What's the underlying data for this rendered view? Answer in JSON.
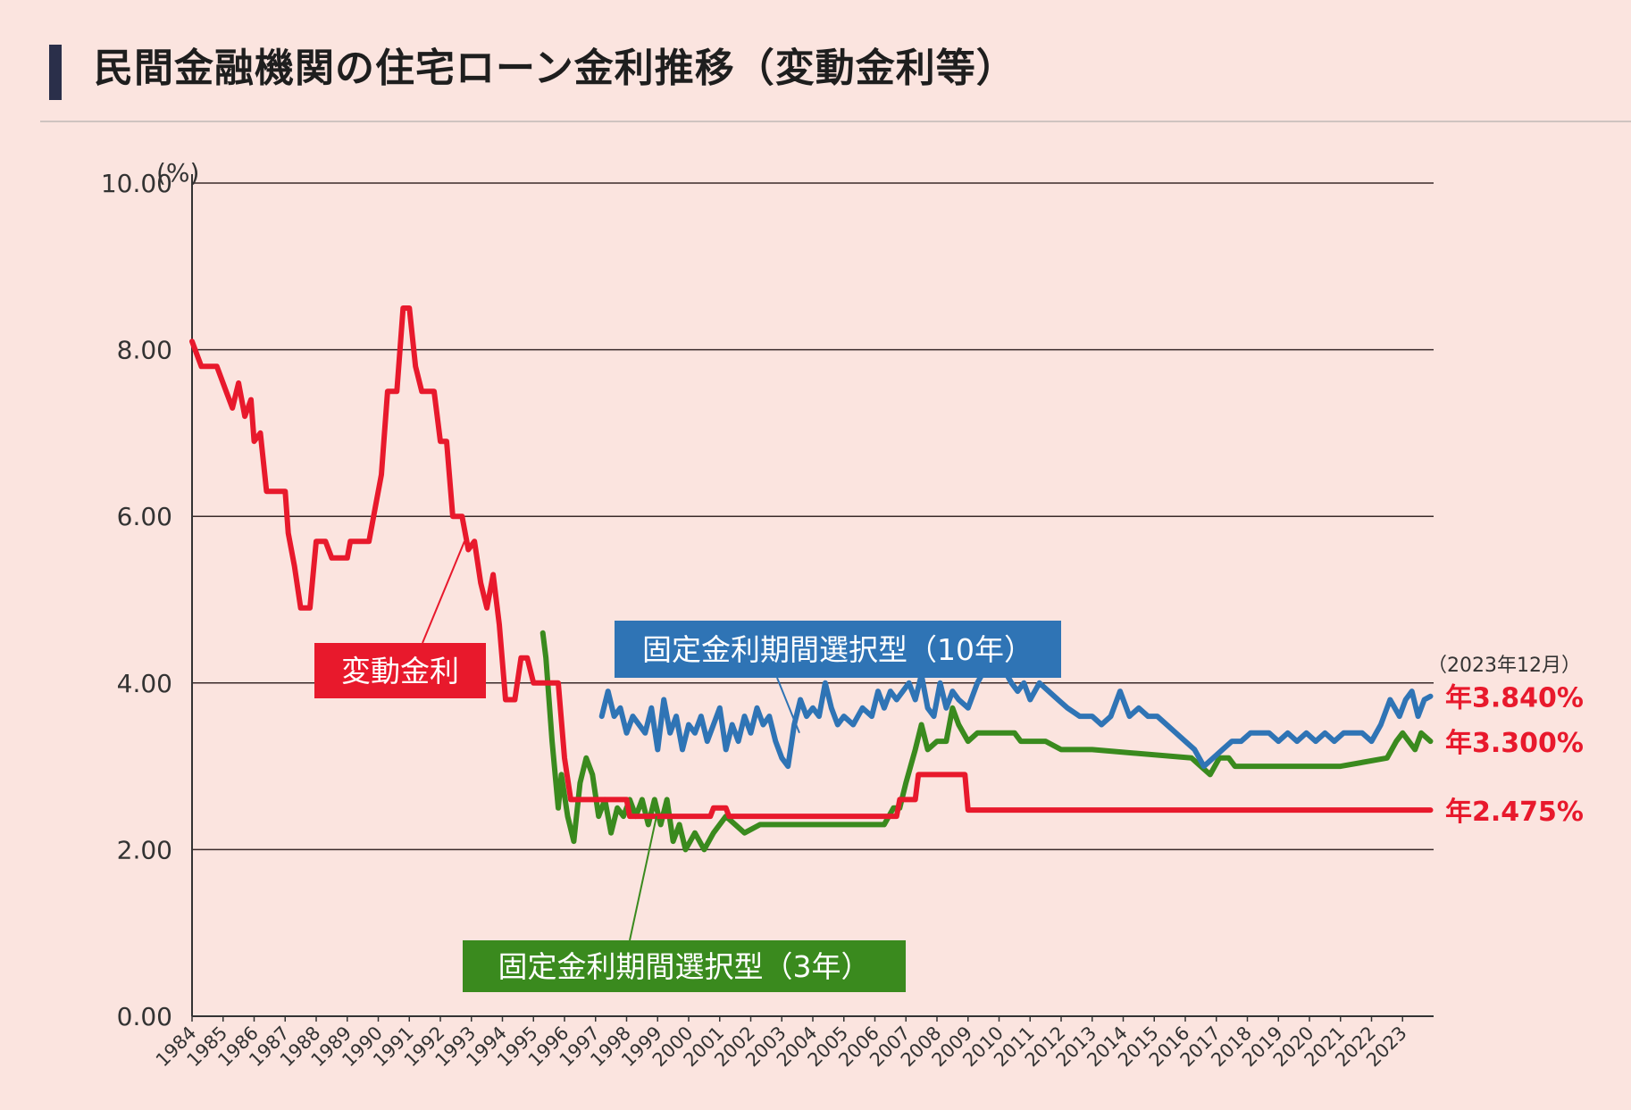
{
  "title": "民間金融機関の住宅ローン金利推移（変動金利等）",
  "chart_data": {
    "type": "line",
    "ylabel": "(%)",
    "ylim": [
      0,
      10
    ],
    "yticks": [
      "0.00",
      "2.00",
      "4.00",
      "6.00",
      "8.00",
      "10.00"
    ],
    "xlim": [
      1984,
      2024
    ],
    "xticks": [
      "1984",
      "1985",
      "1986",
      "1987",
      "1988",
      "1989",
      "1990",
      "1991",
      "1992",
      "1993",
      "1994",
      "1995",
      "1996",
      "1997",
      "1998",
      "1999",
      "2000",
      "2001",
      "2002",
      "2003",
      "2004",
      "2005",
      "2006",
      "2007",
      "2008",
      "2009",
      "2010",
      "2011",
      "2012",
      "2013",
      "2014",
      "2015",
      "2016",
      "2017",
      "2018",
      "2019",
      "2020",
      "2021",
      "2022",
      "2023"
    ],
    "date_note": "（2023年12月）",
    "series": [
      {
        "name": "変動金利",
        "color": "#e8192c",
        "end_label": "年2.475%",
        "points": [
          [
            1984.0,
            8.1
          ],
          [
            1984.3,
            7.8
          ],
          [
            1984.8,
            7.8
          ],
          [
            1985.1,
            7.5
          ],
          [
            1985.3,
            7.3
          ],
          [
            1985.5,
            7.6
          ],
          [
            1985.7,
            7.2
          ],
          [
            1985.9,
            7.4
          ],
          [
            1986.0,
            6.9
          ],
          [
            1986.2,
            7.0
          ],
          [
            1986.4,
            6.3
          ],
          [
            1987.0,
            6.3
          ],
          [
            1987.1,
            5.8
          ],
          [
            1987.3,
            5.4
          ],
          [
            1987.5,
            4.9
          ],
          [
            1987.8,
            4.9
          ],
          [
            1988.0,
            5.7
          ],
          [
            1988.3,
            5.7
          ],
          [
            1988.5,
            5.5
          ],
          [
            1989.0,
            5.5
          ],
          [
            1989.1,
            5.7
          ],
          [
            1989.7,
            5.7
          ],
          [
            1989.9,
            6.1
          ],
          [
            1990.1,
            6.5
          ],
          [
            1990.3,
            7.5
          ],
          [
            1990.6,
            7.5
          ],
          [
            1990.8,
            8.5
          ],
          [
            1991.0,
            8.5
          ],
          [
            1991.2,
            7.8
          ],
          [
            1991.4,
            7.5
          ],
          [
            1991.8,
            7.5
          ],
          [
            1992.0,
            6.9
          ],
          [
            1992.2,
            6.9
          ],
          [
            1992.4,
            6.0
          ],
          [
            1992.7,
            6.0
          ],
          [
            1992.9,
            5.6
          ],
          [
            1993.1,
            5.7
          ],
          [
            1993.3,
            5.2
          ],
          [
            1993.5,
            4.9
          ],
          [
            1993.7,
            5.3
          ],
          [
            1993.9,
            4.7
          ],
          [
            1994.1,
            3.8
          ],
          [
            1994.4,
            3.8
          ],
          [
            1994.6,
            4.3
          ],
          [
            1994.8,
            4.3
          ],
          [
            1995.0,
            4.0
          ],
          [
            1995.8,
            4.0
          ],
          [
            1996.0,
            3.1
          ],
          [
            1996.2,
            2.6
          ],
          [
            1998.0,
            2.6
          ],
          [
            1998.1,
            2.4
          ],
          [
            2000.7,
            2.4
          ],
          [
            2000.8,
            2.5
          ],
          [
            2001.2,
            2.5
          ],
          [
            2001.3,
            2.4
          ],
          [
            2006.7,
            2.4
          ],
          [
            2006.8,
            2.6
          ],
          [
            2007.3,
            2.6
          ],
          [
            2007.4,
            2.9
          ],
          [
            2008.9,
            2.9
          ],
          [
            2009.0,
            2.475
          ],
          [
            2023.9,
            2.475
          ]
        ]
      },
      {
        "name": "固定金利期間選択型（3年）",
        "color": "#3a8a1e",
        "end_label": "年3.300%",
        "points": [
          [
            1995.3,
            4.6
          ],
          [
            1995.4,
            4.3
          ],
          [
            1995.6,
            3.3
          ],
          [
            1995.8,
            2.5
          ],
          [
            1995.9,
            2.9
          ],
          [
            1996.1,
            2.4
          ],
          [
            1996.3,
            2.1
          ],
          [
            1996.5,
            2.8
          ],
          [
            1996.7,
            3.1
          ],
          [
            1996.9,
            2.9
          ],
          [
            1997.1,
            2.4
          ],
          [
            1997.3,
            2.6
          ],
          [
            1997.5,
            2.2
          ],
          [
            1997.7,
            2.5
          ],
          [
            1997.9,
            2.4
          ],
          [
            1998.1,
            2.6
          ],
          [
            1998.3,
            2.4
          ],
          [
            1998.5,
            2.6
          ],
          [
            1998.7,
            2.3
          ],
          [
            1998.9,
            2.6
          ],
          [
            1999.1,
            2.3
          ],
          [
            1999.3,
            2.6
          ],
          [
            1999.5,
            2.1
          ],
          [
            1999.7,
            2.3
          ],
          [
            1999.9,
            2.0
          ],
          [
            2000.2,
            2.2
          ],
          [
            2000.5,
            2.0
          ],
          [
            2000.8,
            2.2
          ],
          [
            2001.2,
            2.4
          ],
          [
            2001.5,
            2.3
          ],
          [
            2001.8,
            2.2
          ],
          [
            2002.3,
            2.3
          ],
          [
            2006.3,
            2.3
          ],
          [
            2006.6,
            2.5
          ],
          [
            2006.8,
            2.5
          ],
          [
            2007.0,
            2.8
          ],
          [
            2007.3,
            3.2
          ],
          [
            2007.5,
            3.5
          ],
          [
            2007.7,
            3.2
          ],
          [
            2008.0,
            3.3
          ],
          [
            2008.3,
            3.3
          ],
          [
            2008.5,
            3.7
          ],
          [
            2008.7,
            3.5
          ],
          [
            2009.0,
            3.3
          ],
          [
            2009.3,
            3.4
          ],
          [
            2010.5,
            3.4
          ],
          [
            2010.7,
            3.3
          ],
          [
            2011.5,
            3.3
          ],
          [
            2012.0,
            3.2
          ],
          [
            2012.5,
            3.2
          ],
          [
            2013.0,
            3.2
          ],
          [
            2016.2,
            3.1
          ],
          [
            2016.5,
            3.0
          ],
          [
            2016.8,
            2.9
          ],
          [
            2017.1,
            3.1
          ],
          [
            2017.4,
            3.1
          ],
          [
            2017.6,
            3.0
          ],
          [
            2018.0,
            3.0
          ],
          [
            2019.0,
            3.0
          ],
          [
            2021.0,
            3.0
          ],
          [
            2022.5,
            3.1
          ],
          [
            2022.8,
            3.3
          ],
          [
            2023.0,
            3.4
          ],
          [
            2023.2,
            3.3
          ],
          [
            2023.4,
            3.2
          ],
          [
            2023.6,
            3.4
          ],
          [
            2023.9,
            3.3
          ]
        ]
      },
      {
        "name": "固定金利期間選択型（10年）",
        "color": "#2f74b5",
        "end_label": "年3.840%",
        "points": [
          [
            1997.2,
            3.6
          ],
          [
            1997.4,
            3.9
          ],
          [
            1997.6,
            3.6
          ],
          [
            1997.8,
            3.7
          ],
          [
            1998.0,
            3.4
          ],
          [
            1998.2,
            3.6
          ],
          [
            1998.4,
            3.5
          ],
          [
            1998.6,
            3.4
          ],
          [
            1998.8,
            3.7
          ],
          [
            1999.0,
            3.2
          ],
          [
            1999.2,
            3.8
          ],
          [
            1999.4,
            3.4
          ],
          [
            1999.6,
            3.6
          ],
          [
            1999.8,
            3.2
          ],
          [
            2000.0,
            3.5
          ],
          [
            2000.2,
            3.4
          ],
          [
            2000.4,
            3.6
          ],
          [
            2000.6,
            3.3
          ],
          [
            2000.8,
            3.5
          ],
          [
            2001.0,
            3.7
          ],
          [
            2001.2,
            3.2
          ],
          [
            2001.4,
            3.5
          ],
          [
            2001.6,
            3.3
          ],
          [
            2001.8,
            3.6
          ],
          [
            2002.0,
            3.4
          ],
          [
            2002.2,
            3.7
          ],
          [
            2002.4,
            3.5
          ],
          [
            2002.6,
            3.6
          ],
          [
            2002.8,
            3.3
          ],
          [
            2003.0,
            3.1
          ],
          [
            2003.2,
            3.0
          ],
          [
            2003.4,
            3.5
          ],
          [
            2003.6,
            3.8
          ],
          [
            2003.8,
            3.6
          ],
          [
            2004.0,
            3.7
          ],
          [
            2004.2,
            3.6
          ],
          [
            2004.4,
            4.0
          ],
          [
            2004.6,
            3.7
          ],
          [
            2004.8,
            3.5
          ],
          [
            2005.0,
            3.6
          ],
          [
            2005.3,
            3.5
          ],
          [
            2005.6,
            3.7
          ],
          [
            2005.9,
            3.6
          ],
          [
            2006.1,
            3.9
          ],
          [
            2006.3,
            3.7
          ],
          [
            2006.5,
            3.9
          ],
          [
            2006.7,
            3.8
          ],
          [
            2006.9,
            3.9
          ],
          [
            2007.1,
            4.0
          ],
          [
            2007.3,
            3.8
          ],
          [
            2007.5,
            4.1
          ],
          [
            2007.7,
            3.7
          ],
          [
            2007.9,
            3.6
          ],
          [
            2008.1,
            4.0
          ],
          [
            2008.3,
            3.7
          ],
          [
            2008.5,
            3.9
          ],
          [
            2008.7,
            3.8
          ],
          [
            2009.0,
            3.7
          ],
          [
            2009.3,
            4.0
          ],
          [
            2009.6,
            4.2
          ],
          [
            2009.9,
            4.1
          ],
          [
            2010.1,
            4.2
          ],
          [
            2010.4,
            4.0
          ],
          [
            2010.6,
            3.9
          ],
          [
            2010.8,
            4.0
          ],
          [
            2011.0,
            3.8
          ],
          [
            2011.3,
            4.0
          ],
          [
            2011.6,
            3.9
          ],
          [
            2011.9,
            3.8
          ],
          [
            2012.2,
            3.7
          ],
          [
            2012.6,
            3.6
          ],
          [
            2013.0,
            3.6
          ],
          [
            2013.3,
            3.5
          ],
          [
            2013.6,
            3.6
          ],
          [
            2013.9,
            3.9
          ],
          [
            2014.2,
            3.6
          ],
          [
            2014.5,
            3.7
          ],
          [
            2014.8,
            3.6
          ],
          [
            2015.1,
            3.6
          ],
          [
            2015.4,
            3.5
          ],
          [
            2015.7,
            3.4
          ],
          [
            2016.0,
            3.3
          ],
          [
            2016.3,
            3.2
          ],
          [
            2016.6,
            3.0
          ],
          [
            2016.9,
            3.1
          ],
          [
            2017.2,
            3.2
          ],
          [
            2017.5,
            3.3
          ],
          [
            2017.8,
            3.3
          ],
          [
            2018.1,
            3.4
          ],
          [
            2018.4,
            3.4
          ],
          [
            2018.7,
            3.4
          ],
          [
            2019.0,
            3.3
          ],
          [
            2019.3,
            3.4
          ],
          [
            2019.6,
            3.3
          ],
          [
            2019.9,
            3.4
          ],
          [
            2020.2,
            3.3
          ],
          [
            2020.5,
            3.4
          ],
          [
            2020.8,
            3.3
          ],
          [
            2021.1,
            3.4
          ],
          [
            2021.4,
            3.4
          ],
          [
            2021.7,
            3.4
          ],
          [
            2022.0,
            3.3
          ],
          [
            2022.3,
            3.5
          ],
          [
            2022.6,
            3.8
          ],
          [
            2022.9,
            3.6
          ],
          [
            2023.1,
            3.8
          ],
          [
            2023.3,
            3.9
          ],
          [
            2023.5,
            3.6
          ],
          [
            2023.7,
            3.8
          ],
          [
            2023.9,
            3.84
          ]
        ]
      }
    ]
  }
}
